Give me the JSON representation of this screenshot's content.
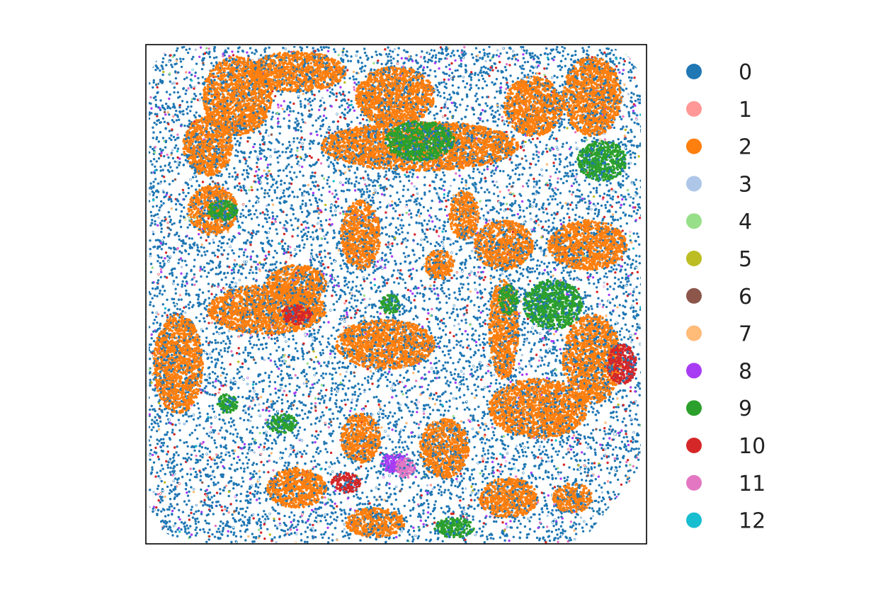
{
  "chart_data": {
    "type": "scatter",
    "title": "",
    "xlabel": "",
    "ylabel": "",
    "axis_ticks": false,
    "grid": false,
    "legend_position": "right",
    "series": [
      {
        "name": "0",
        "color": "#1f77b4",
        "share": 0.56
      },
      {
        "name": "1",
        "color": "#ff9896",
        "share": 0.004
      },
      {
        "name": "2",
        "color": "#ff7f0e",
        "share": 0.28
      },
      {
        "name": "3",
        "color": "#aec7e8",
        "share": 0.01
      },
      {
        "name": "4",
        "color": "#98df8a",
        "share": 0.005
      },
      {
        "name": "5",
        "color": "#bcbd22",
        "share": 0.003
      },
      {
        "name": "6",
        "color": "#8c564b",
        "share": 0.003
      },
      {
        "name": "7",
        "color": "#ffbb78",
        "share": 0.01
      },
      {
        "name": "8",
        "color": "#a83cf5",
        "share": 0.025
      },
      {
        "name": "9",
        "color": "#2ca02c",
        "share": 0.05
      },
      {
        "name": "10",
        "color": "#d62728",
        "share": 0.03
      },
      {
        "name": "11",
        "color": "#e377c2",
        "share": 0.01
      },
      {
        "name": "12",
        "color": "#17becf",
        "share": 0.003
      }
    ],
    "regions": [
      {
        "series": "2",
        "x": 0.18,
        "y": 0.1,
        "rx": 0.07,
        "ry": 0.08
      },
      {
        "series": "2",
        "x": 0.12,
        "y": 0.2,
        "rx": 0.05,
        "ry": 0.06
      },
      {
        "series": "2",
        "x": 0.3,
        "y": 0.05,
        "rx": 0.1,
        "ry": 0.04
      },
      {
        "series": "2",
        "x": 0.5,
        "y": 0.1,
        "rx": 0.08,
        "ry": 0.06
      },
      {
        "series": "2",
        "x": 0.55,
        "y": 0.2,
        "rx": 0.2,
        "ry": 0.05
      },
      {
        "series": "2",
        "x": 0.78,
        "y": 0.12,
        "rx": 0.06,
        "ry": 0.06
      },
      {
        "series": "2",
        "x": 0.9,
        "y": 0.1,
        "rx": 0.06,
        "ry": 0.08
      },
      {
        "series": "2",
        "x": 0.13,
        "y": 0.33,
        "rx": 0.05,
        "ry": 0.05
      },
      {
        "series": "2",
        "x": 0.43,
        "y": 0.38,
        "rx": 0.04,
        "ry": 0.07
      },
      {
        "series": "2",
        "x": 0.64,
        "y": 0.34,
        "rx": 0.03,
        "ry": 0.05
      },
      {
        "series": "2",
        "x": 0.59,
        "y": 0.44,
        "rx": 0.03,
        "ry": 0.03
      },
      {
        "series": "2",
        "x": 0.72,
        "y": 0.4,
        "rx": 0.06,
        "ry": 0.05
      },
      {
        "series": "2",
        "x": 0.89,
        "y": 0.4,
        "rx": 0.08,
        "ry": 0.05
      },
      {
        "series": "2",
        "x": 0.24,
        "y": 0.53,
        "rx": 0.12,
        "ry": 0.05
      },
      {
        "series": "2",
        "x": 0.3,
        "y": 0.48,
        "rx": 0.06,
        "ry": 0.04
      },
      {
        "series": "2",
        "x": 0.06,
        "y": 0.64,
        "rx": 0.05,
        "ry": 0.1
      },
      {
        "series": "2",
        "x": 0.48,
        "y": 0.6,
        "rx": 0.1,
        "ry": 0.05
      },
      {
        "series": "2",
        "x": 0.72,
        "y": 0.57,
        "rx": 0.03,
        "ry": 0.1
      },
      {
        "series": "2",
        "x": 0.9,
        "y": 0.63,
        "rx": 0.06,
        "ry": 0.09
      },
      {
        "series": "2",
        "x": 0.79,
        "y": 0.73,
        "rx": 0.1,
        "ry": 0.06
      },
      {
        "series": "2",
        "x": 0.43,
        "y": 0.79,
        "rx": 0.04,
        "ry": 0.05
      },
      {
        "series": "2",
        "x": 0.6,
        "y": 0.81,
        "rx": 0.05,
        "ry": 0.06
      },
      {
        "series": "2",
        "x": 0.3,
        "y": 0.89,
        "rx": 0.06,
        "ry": 0.04
      },
      {
        "series": "2",
        "x": 0.73,
        "y": 0.91,
        "rx": 0.06,
        "ry": 0.04
      },
      {
        "series": "2",
        "x": 0.46,
        "y": 0.96,
        "rx": 0.06,
        "ry": 0.03
      },
      {
        "series": "2",
        "x": 0.86,
        "y": 0.91,
        "rx": 0.04,
        "ry": 0.03
      },
      {
        "series": "9",
        "x": 0.55,
        "y": 0.19,
        "rx": 0.07,
        "ry": 0.04
      },
      {
        "series": "9",
        "x": 0.92,
        "y": 0.23,
        "rx": 0.05,
        "ry": 0.04
      },
      {
        "series": "9",
        "x": 0.15,
        "y": 0.33,
        "rx": 0.03,
        "ry": 0.02
      },
      {
        "series": "9",
        "x": 0.82,
        "y": 0.52,
        "rx": 0.06,
        "ry": 0.05
      },
      {
        "series": "9",
        "x": 0.73,
        "y": 0.51,
        "rx": 0.02,
        "ry": 0.03
      },
      {
        "series": "9",
        "x": 0.49,
        "y": 0.52,
        "rx": 0.02,
        "ry": 0.02
      },
      {
        "series": "9",
        "x": 0.27,
        "y": 0.76,
        "rx": 0.03,
        "ry": 0.02
      },
      {
        "series": "9",
        "x": 0.16,
        "y": 0.72,
        "rx": 0.02,
        "ry": 0.02
      },
      {
        "series": "9",
        "x": 0.62,
        "y": 0.97,
        "rx": 0.04,
        "ry": 0.02
      },
      {
        "series": "10",
        "x": 0.3,
        "y": 0.54,
        "rx": 0.03,
        "ry": 0.02
      },
      {
        "series": "10",
        "x": 0.96,
        "y": 0.64,
        "rx": 0.03,
        "ry": 0.04
      },
      {
        "series": "10",
        "x": 0.4,
        "y": 0.88,
        "rx": 0.03,
        "ry": 0.02
      },
      {
        "series": "8",
        "x": 0.5,
        "y": 0.84,
        "rx": 0.03,
        "ry": 0.02
      },
      {
        "series": "11",
        "x": 0.52,
        "y": 0.85,
        "rx": 0.02,
        "ry": 0.02
      }
    ]
  }
}
